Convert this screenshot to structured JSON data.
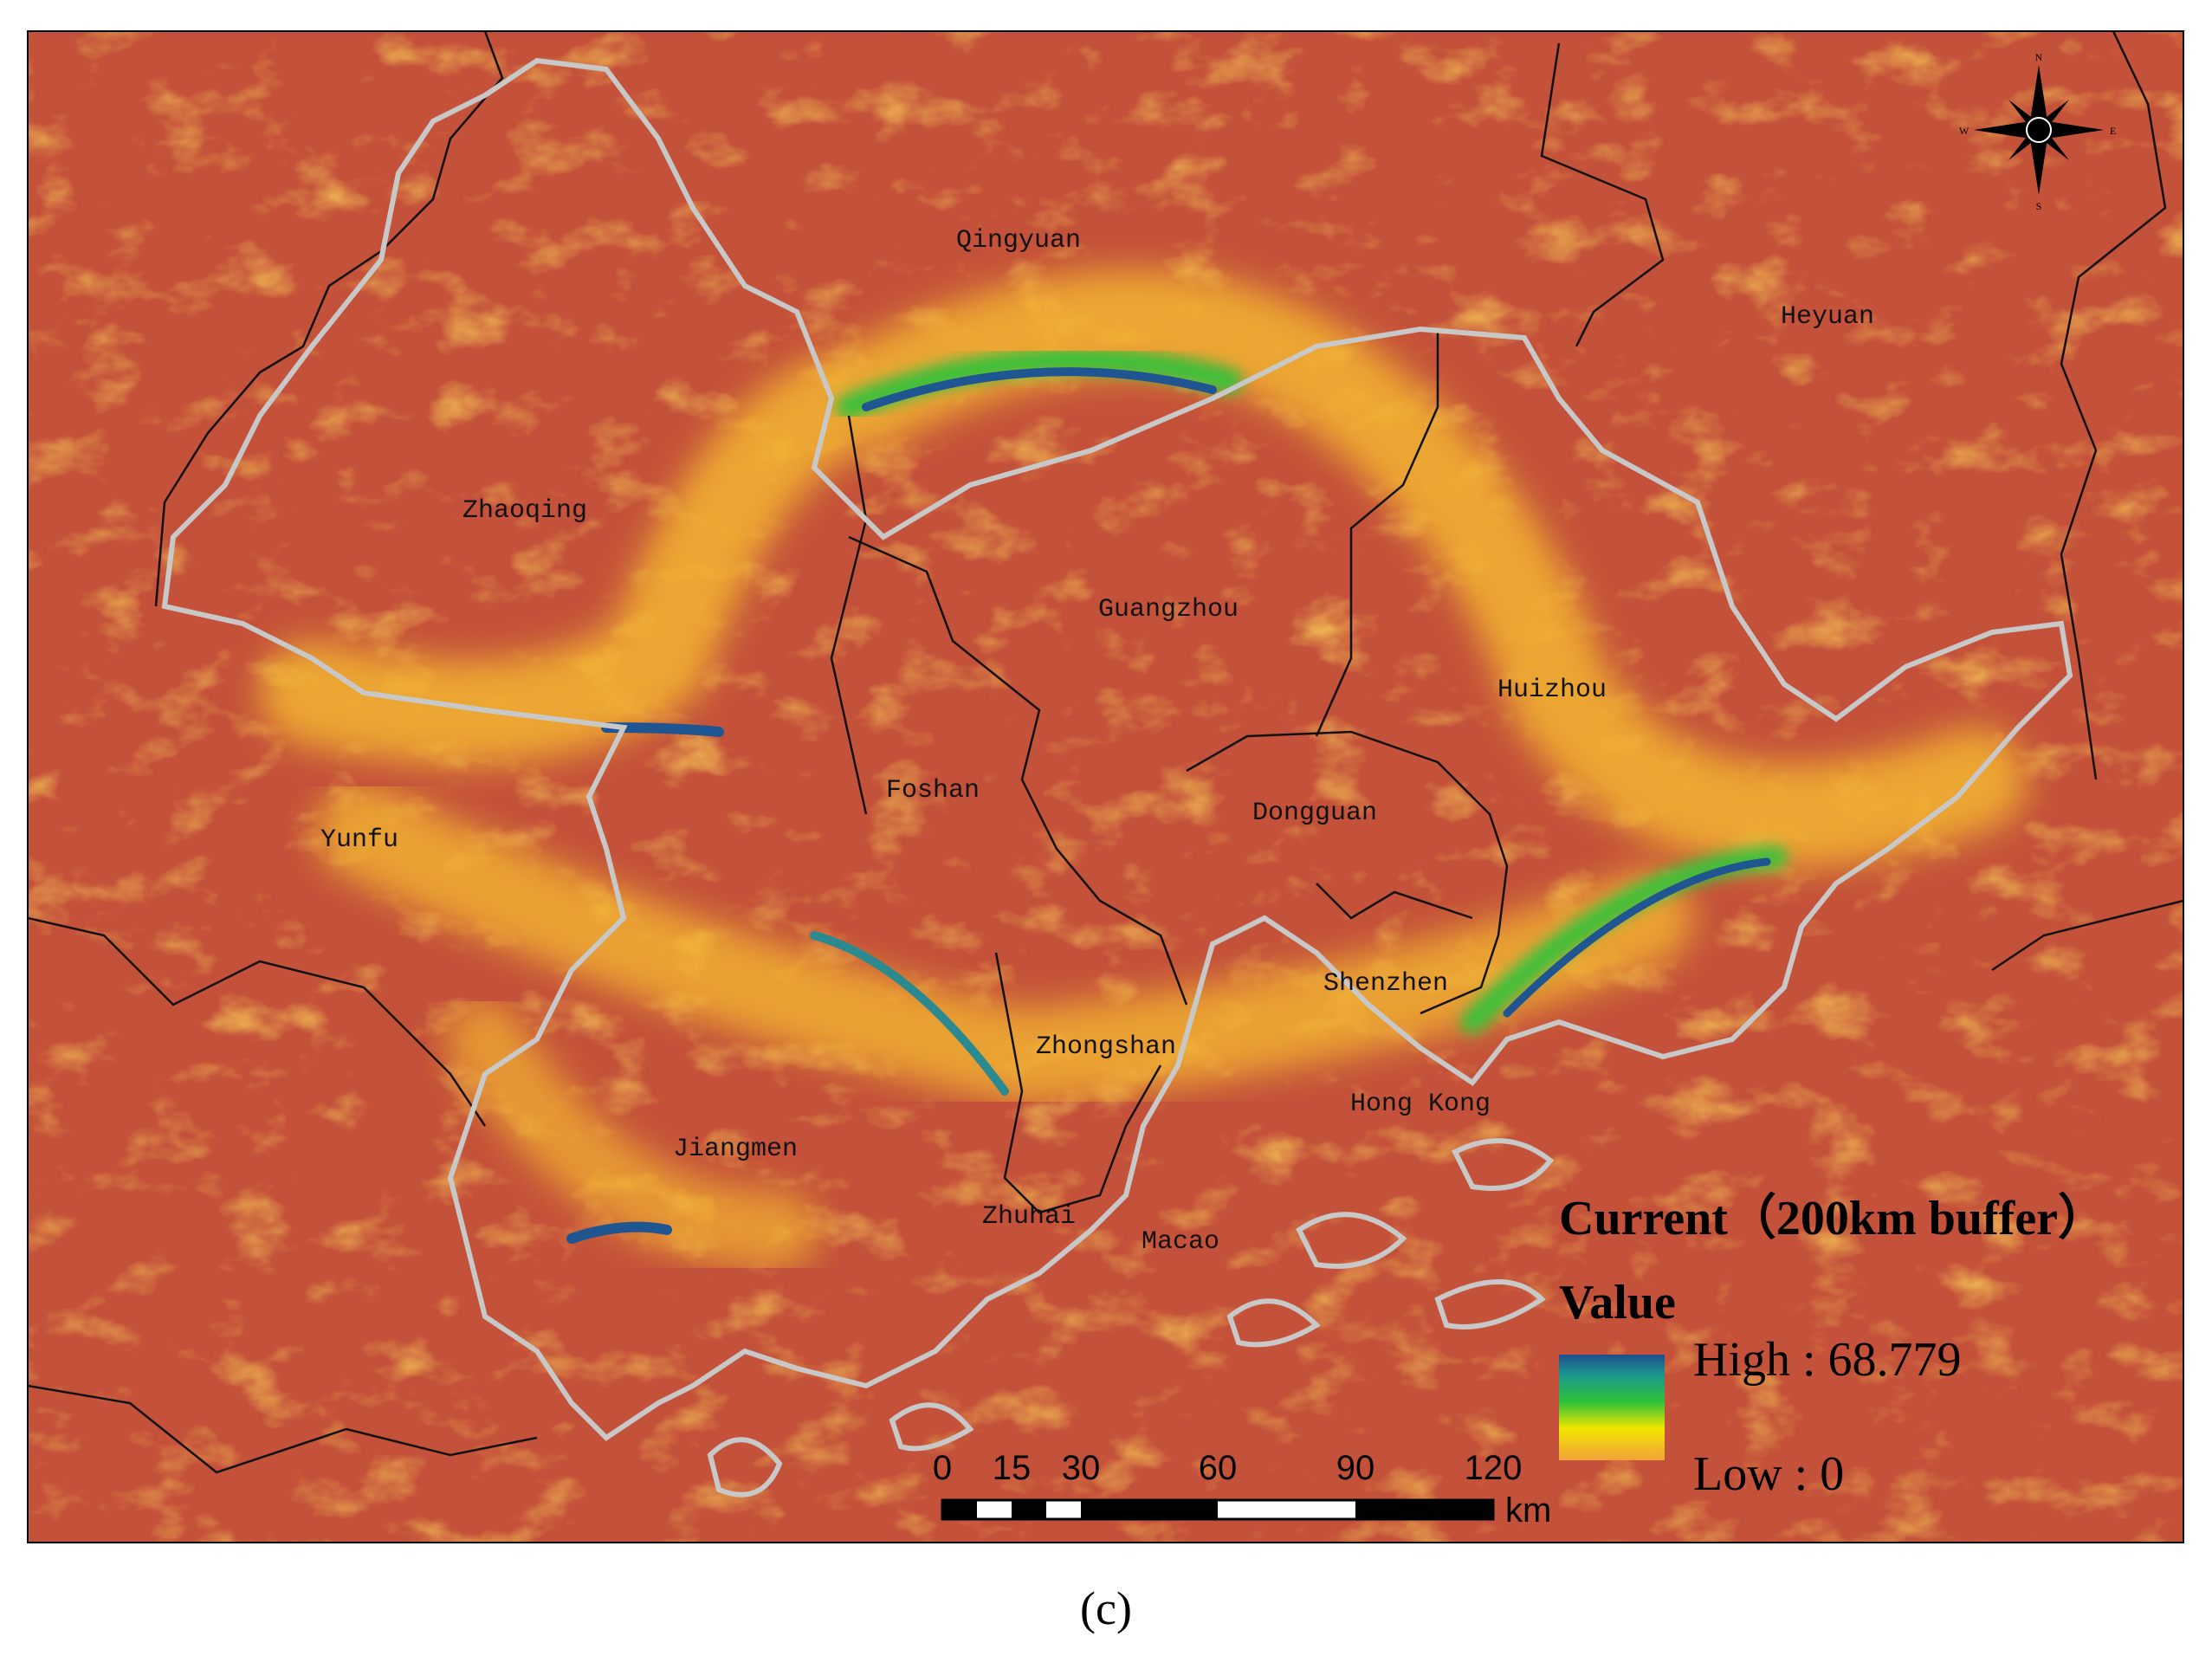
{
  "map": {
    "cities": [
      "Qingyuan",
      "Heyuan",
      "Zhaoqing",
      "Guangzhou",
      "Huizhou",
      "Foshan",
      "Dongguan",
      "Yunfu",
      "Shenzhen",
      "Zhongshan",
      "Hong Kong",
      "Jiangmen",
      "Zhuhai",
      "Macao"
    ],
    "compass": {
      "north": "N",
      "east": "E",
      "south": "S",
      "west": "W"
    },
    "legend": {
      "title": "Current（200km buffer）",
      "subtitle": "Value",
      "high_label": "High : 68.779",
      "low_label": "Low : 0"
    },
    "scale_bar": {
      "labels": [
        "0",
        "15",
        "30",
        "60",
        "90",
        "120"
      ],
      "unit": "km"
    }
  },
  "caption": "(c)"
}
